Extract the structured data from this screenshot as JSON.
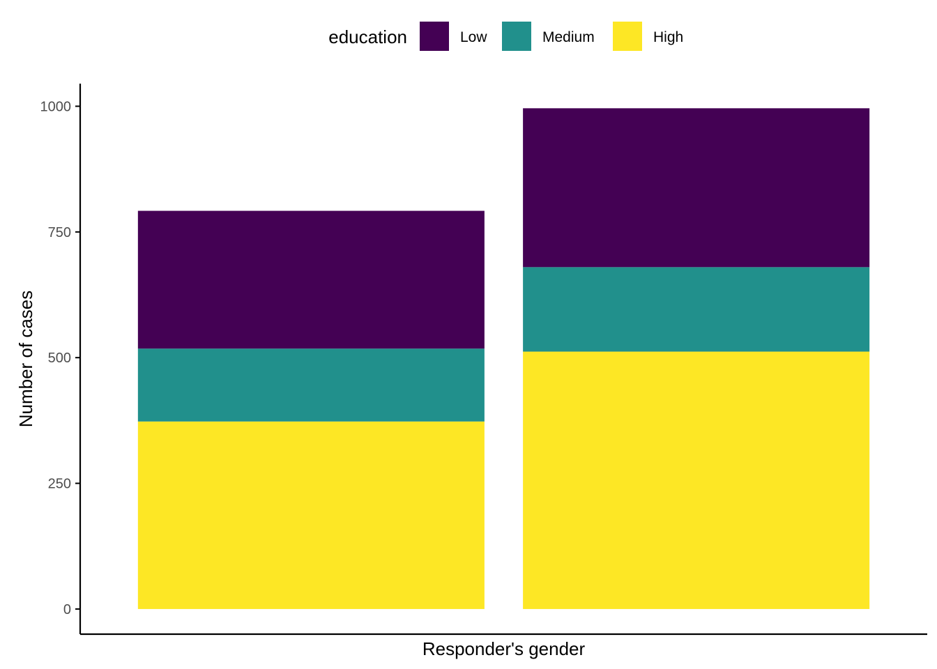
{
  "chart_data": {
    "type": "bar",
    "stacked": true,
    "categories": [
      "",
      ""
    ],
    "series": [
      {
        "name": "High",
        "color": "#FDE725",
        "values": [
          373,
          512
        ]
      },
      {
        "name": "Medium",
        "color": "#21908C",
        "values": [
          145,
          168
        ]
      },
      {
        "name": "Low",
        "color": "#440154",
        "values": [
          274,
          316
        ]
      }
    ],
    "xlabel": "Responder's gender",
    "ylabel": "Number of cases",
    "ylim": [
      -50,
      1045
    ],
    "yticks": [
      0,
      250,
      500,
      750,
      1000
    ],
    "legend": {
      "title": "education",
      "position": "top",
      "order": [
        "Low",
        "Medium",
        "High"
      ]
    },
    "grid": false
  }
}
